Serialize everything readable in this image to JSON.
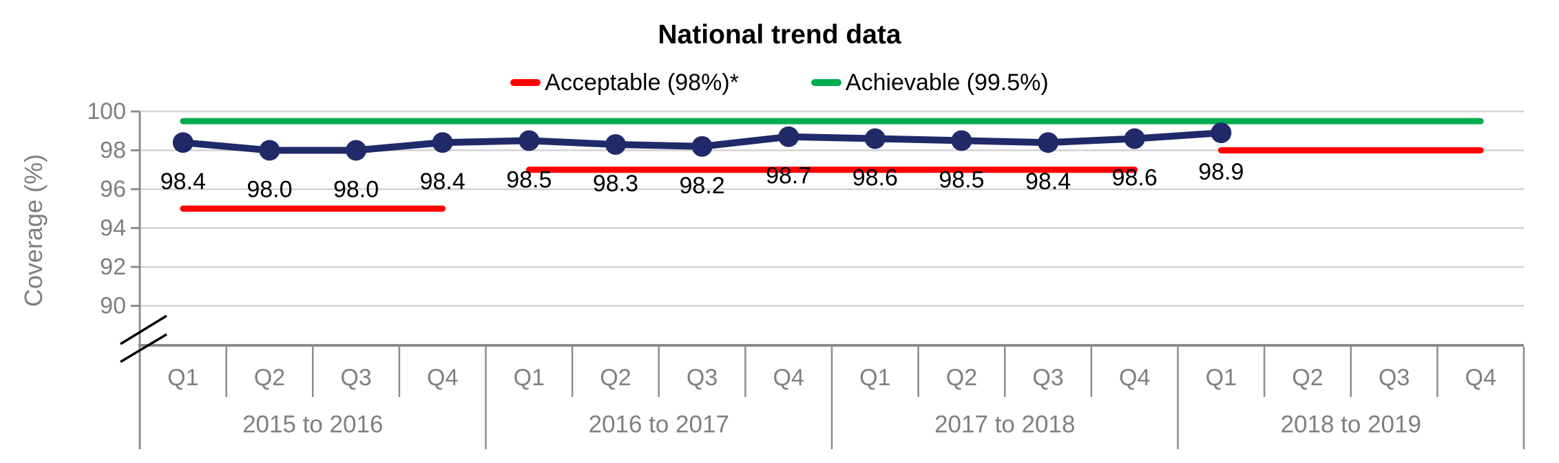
{
  "chart": {
    "title": "National trend data",
    "y_axis_title": "Coverage (%)"
  },
  "chart_data": {
    "type": "line",
    "title": "National trend data",
    "xlabel": "",
    "ylabel": "Coverage (%)",
    "ylim": [
      90,
      100
    ],
    "y_ticks": [
      100,
      98,
      96,
      94,
      92,
      90
    ],
    "y_axis_break": true,
    "grid": true,
    "legend_position": "top",
    "categories": [
      "Q1",
      "Q2",
      "Q3",
      "Q4",
      "Q1",
      "Q2",
      "Q3",
      "Q4",
      "Q1",
      "Q2",
      "Q3",
      "Q4",
      "Q1",
      "Q2",
      "Q3",
      "Q4"
    ],
    "group_labels": [
      "2015 to 2016",
      "2016 to 2017",
      "2017 to 2018",
      "2018 to 2019"
    ],
    "quarters_per_group": 4,
    "series": [
      {
        "values": [
          98.4,
          98.0,
          98.0,
          98.4,
          98.5,
          98.3,
          98.2,
          98.7,
          98.6,
          98.5,
          98.4,
          98.6,
          98.9,
          null,
          null,
          null
        ],
        "point_labels": [
          "98.4",
          "98.0",
          "98.0",
          "98.4",
          "98.5",
          "98.3",
          "98.2",
          "98.7",
          "98.6",
          "98.5",
          "98.4",
          "98.6",
          "98.9"
        ],
        "color": "#202A69"
      }
    ],
    "reference_lines": [
      {
        "label": "Acceptable (98%)*",
        "color": "#FF0000",
        "segments": [
          {
            "start_quarter": 0,
            "end_quarter": 3,
            "level": 95
          },
          {
            "start_quarter": 4,
            "end_quarter": 11,
            "level": 97
          },
          {
            "start_quarter": 12,
            "end_quarter": 15,
            "level": 98
          }
        ]
      },
      {
        "label": "Achievable (99.5%)",
        "color": "#00AC4E",
        "segments": [
          {
            "start_quarter": 0,
            "end_quarter": 15,
            "level": 99.5
          }
        ]
      }
    ],
    "styling": {
      "gridline_color": "#D2D2D2",
      "axis_color": "#8C8C8C",
      "tick_label_color": "#7F7F7F",
      "data_label_color": "#000000"
    }
  }
}
